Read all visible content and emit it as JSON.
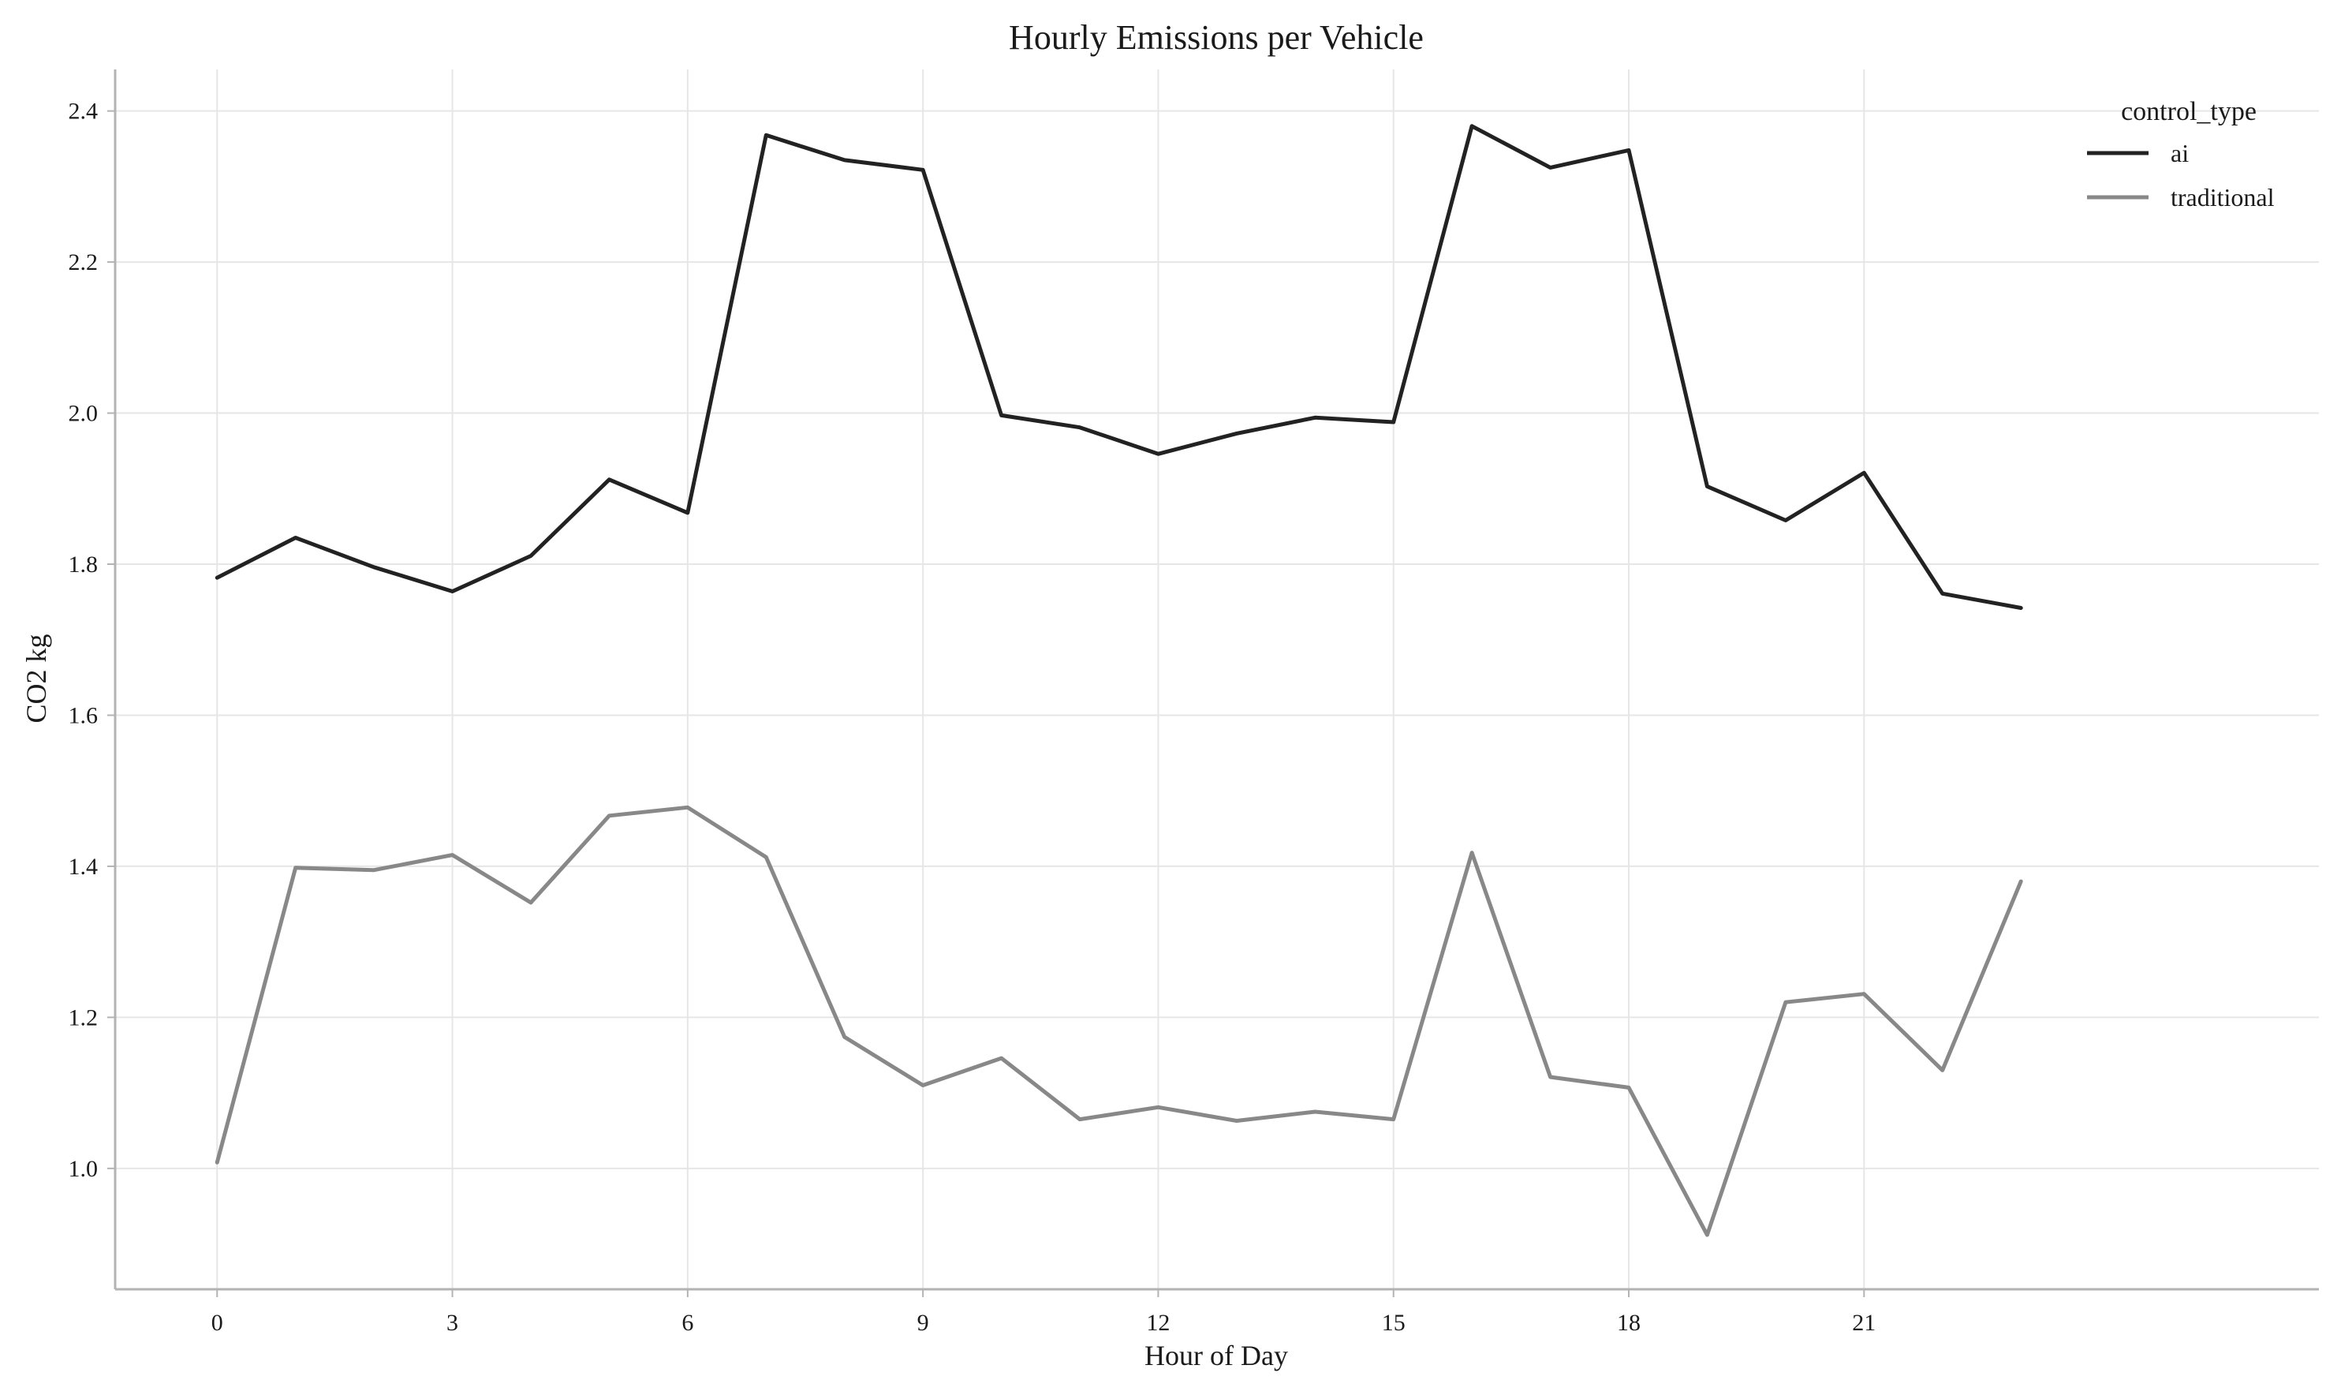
{
  "chart_data": {
    "type": "line",
    "title": "Hourly Emissions per Vehicle",
    "xlabel": "Hour of Day",
    "ylabel": "CO2 kg",
    "x": [
      0,
      1,
      2,
      3,
      4,
      5,
      6,
      7,
      8,
      9,
      10,
      11,
      12,
      13,
      14,
      15,
      16,
      17,
      18,
      19,
      20,
      21,
      22,
      23
    ],
    "xticks": [
      0,
      3,
      6,
      9,
      12,
      15,
      18,
      21
    ],
    "xtick_labels": [
      "0",
      "3",
      "6",
      "9",
      "12",
      "15",
      "18",
      "21"
    ],
    "yticks": [
      1.0,
      1.2,
      1.4,
      1.6,
      1.8,
      2.0,
      2.2,
      2.4
    ],
    "ytick_labels": [
      "1.0",
      "1.2",
      "1.4",
      "1.6",
      "1.8",
      "2.0",
      "2.2",
      "2.4"
    ],
    "xlim": [
      -1.3,
      26.8
    ],
    "ylim": [
      0.84,
      2.455
    ],
    "grid": true,
    "legend": {
      "title": "control_type",
      "placement": "top-right"
    },
    "series": [
      {
        "name": "ai",
        "color": "#222222",
        "values": [
          1.782,
          1.835,
          1.796,
          1.764,
          1.811,
          1.912,
          1.868,
          2.368,
          2.335,
          2.322,
          1.997,
          1.981,
          1.946,
          1.973,
          1.994,
          1.988,
          2.38,
          2.325,
          2.348,
          1.903,
          1.858,
          1.921,
          1.761,
          1.742
        ]
      },
      {
        "name": "traditional",
        "color": "#888888",
        "values": [
          1.008,
          1.398,
          1.395,
          1.415,
          1.352,
          1.467,
          1.478,
          1.412,
          1.174,
          1.11,
          1.146,
          1.065,
          1.081,
          1.063,
          1.075,
          1.065,
          1.418,
          1.121,
          1.107,
          0.912,
          1.22,
          1.231,
          1.13,
          1.38
        ]
      }
    ]
  }
}
